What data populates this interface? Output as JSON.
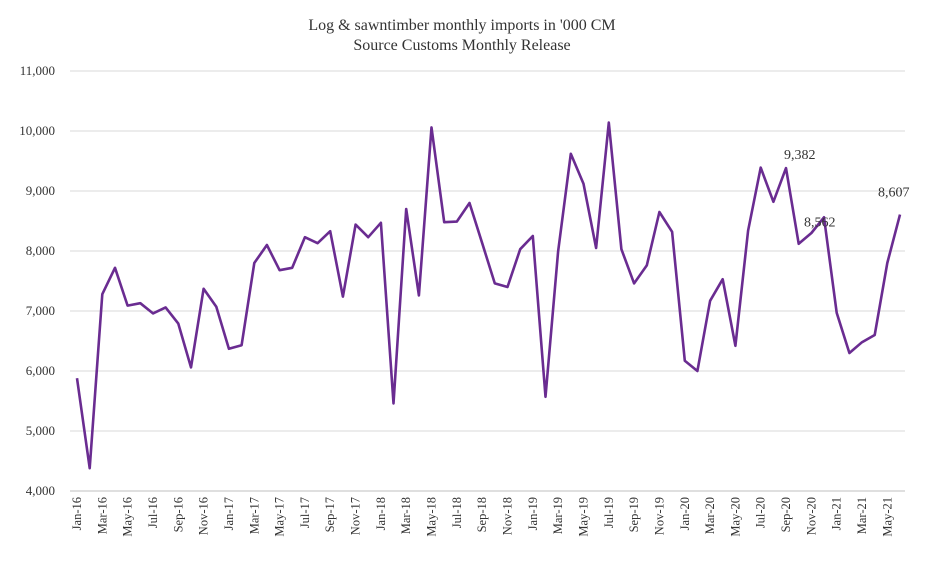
{
  "chart_data": {
    "type": "line",
    "title": "Log & sawntimber monthly imports in '000 CM",
    "subtitle": "Source Customs Monthly Release",
    "xlabel": "",
    "ylabel": "",
    "ylim": [
      4000,
      11000
    ],
    "yticks": [
      "4,000",
      "5,000",
      "6,000",
      "7,000",
      "8,000",
      "9,000",
      "10,000",
      "11,000"
    ],
    "grid": true,
    "legend": "none",
    "line_color": "#6a2c91",
    "x": [
      "Jan-16",
      "Feb-16",
      "Mar-16",
      "Apr-16",
      "May-16",
      "Jun-16",
      "Jul-16",
      "Aug-16",
      "Sep-16",
      "Oct-16",
      "Nov-16",
      "Dec-16",
      "Jan-17",
      "Feb-17",
      "Mar-17",
      "Apr-17",
      "May-17",
      "Jun-17",
      "Jul-17",
      "Aug-17",
      "Sep-17",
      "Oct-17",
      "Nov-17",
      "Dec-17",
      "Jan-18",
      "Feb-18",
      "Mar-18",
      "Apr-18",
      "May-18",
      "Jun-18",
      "Jul-18",
      "Aug-18",
      "Sep-18",
      "Oct-18",
      "Nov-18",
      "Dec-18",
      "Jan-19",
      "Feb-19",
      "Mar-19",
      "Apr-19",
      "May-19",
      "Jun-19",
      "Jul-19",
      "Aug-19",
      "Sep-19",
      "Oct-19",
      "Nov-19",
      "Dec-19",
      "Jan-20",
      "Feb-20",
      "Mar-20",
      "Apr-20",
      "May-20",
      "Jun-20",
      "Jul-20",
      "Aug-20",
      "Sep-20",
      "Oct-20",
      "Nov-20",
      "Dec-20",
      "Jan-21",
      "Feb-21",
      "Mar-21",
      "Apr-21",
      "May-21",
      "Jun-21"
    ],
    "xtick_labels": [
      "Jan-16",
      "Mar-16",
      "May-16",
      "Jul-16",
      "Sep-16",
      "Nov-16",
      "Jan-17",
      "Mar-17",
      "May-17",
      "Jul-17",
      "Sep-17",
      "Nov-17",
      "Jan-18",
      "Mar-18",
      "May-18",
      "Jul-18",
      "Sep-18",
      "Nov-18",
      "Jan-19",
      "Mar-19",
      "May-19",
      "Jul-19",
      "Sep-19",
      "Nov-19",
      "Jan-20",
      "Mar-20",
      "May-20",
      "Jul-20",
      "Sep-20",
      "Nov-20",
      "Jan-21",
      "Mar-21",
      "May-21"
    ],
    "series": [
      {
        "values": [
          5880,
          4380,
          7280,
          7720,
          7090,
          7130,
          6960,
          7060,
          6790,
          6060,
          7370,
          7070,
          6370,
          6430,
          7800,
          8100,
          7680,
          7720,
          8230,
          8130,
          8330,
          7240,
          8440,
          8230,
          8470,
          5460,
          8700,
          7260,
          10060,
          8480,
          8490,
          8800,
          8130,
          7460,
          7400,
          8030,
          8250,
          5570,
          7990,
          9620,
          9120,
          8050,
          10140,
          8030,
          7460,
          7760,
          8650,
          8320,
          6170,
          6000,
          7170,
          7530,
          6420,
          8340,
          9390,
          8820,
          9382,
          8120,
          8300,
          8562,
          6970,
          6300,
          6480,
          6600,
          7800,
          8607
        ]
      }
    ],
    "annotations": [
      {
        "x": "Sep-20",
        "text": "9,382"
      },
      {
        "x": "Dec-20",
        "text": "8,562"
      },
      {
        "x": "Jun-21",
        "text": "8,607"
      }
    ]
  }
}
